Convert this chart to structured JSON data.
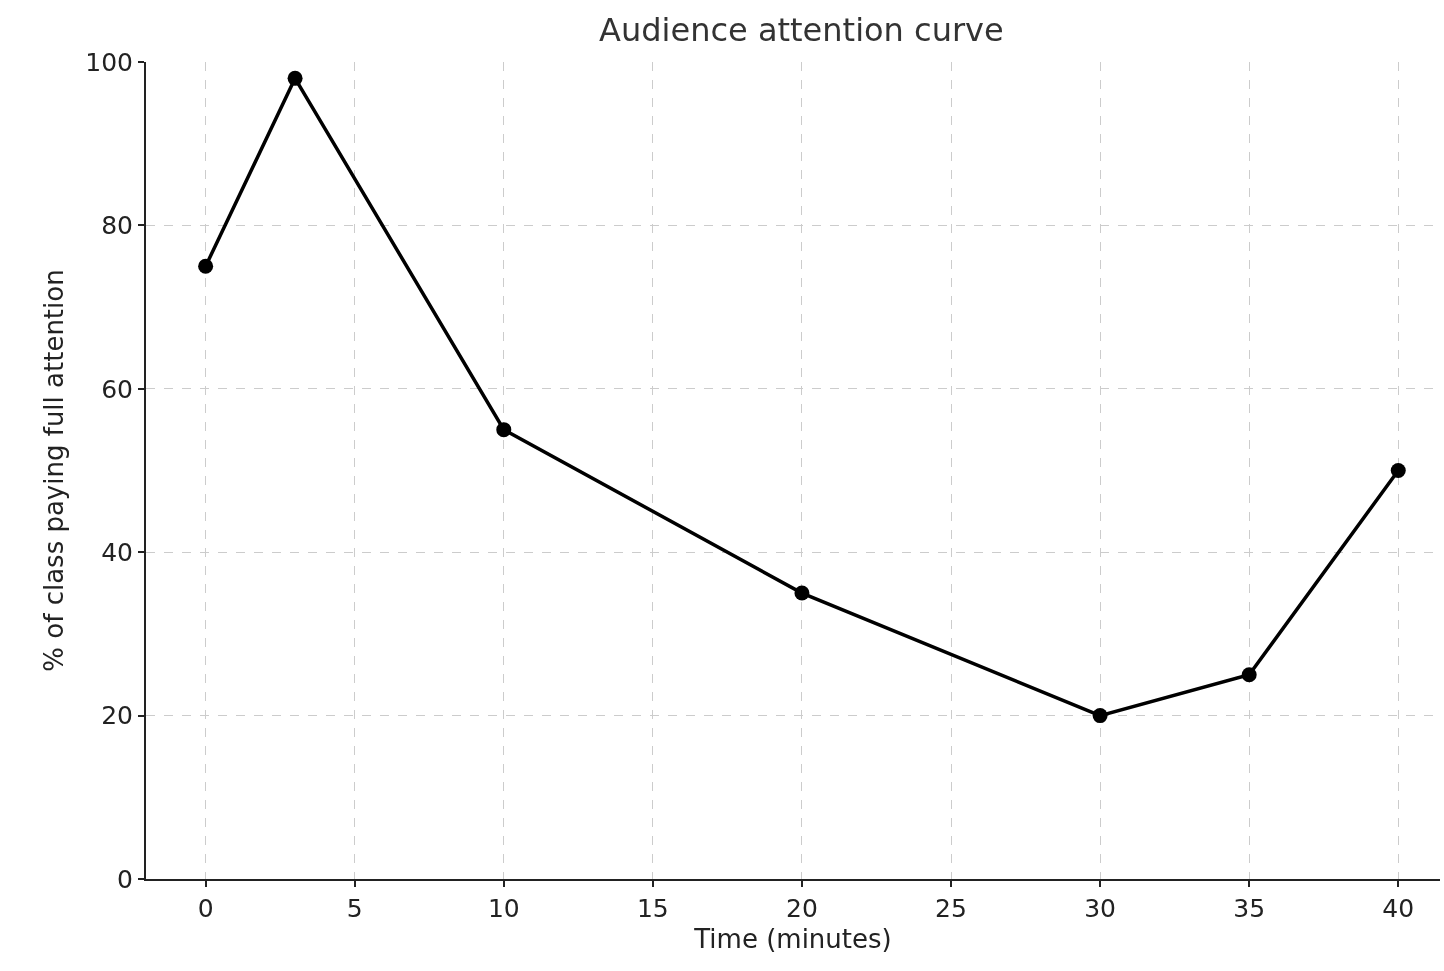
{
  "chart_data": {
    "type": "line",
    "title": "Audience attention curve",
    "xlabel": "Time (minutes)",
    "ylabel": "% of class paying full attention",
    "x": [
      0,
      3,
      10,
      20,
      30,
      35,
      40
    ],
    "series": [
      {
        "color": "#000000",
        "values": [
          75,
          98,
          55,
          35,
          20,
          25,
          50
        ]
      }
    ],
    "xlim": [
      -2,
      41.4
    ],
    "xticks": [
      0,
      5,
      10,
      15,
      20,
      25,
      30,
      35,
      40
    ],
    "ylim": [
      0,
      100
    ],
    "yticks": [
      0,
      20,
      40,
      60,
      80,
      100
    ],
    "grid": true,
    "marker": "circle",
    "line_style": "solid"
  }
}
